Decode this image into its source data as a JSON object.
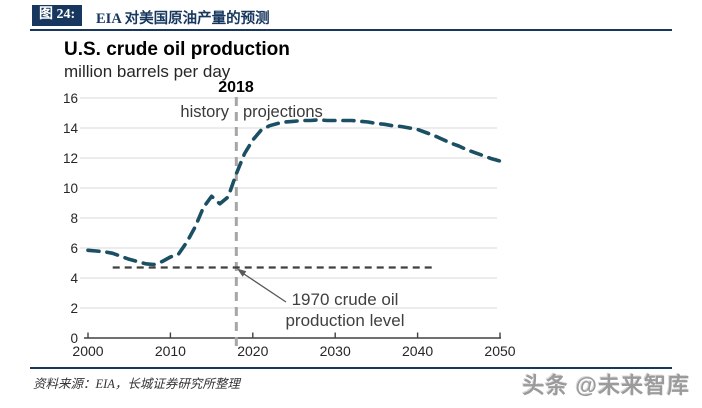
{
  "header": {
    "tag_label": "图 24:",
    "title": "EIA 对美国原油产量的预测"
  },
  "chart": {
    "title": "U.S. crude oil production",
    "subtitle": "million barrels per day",
    "divider_label": "2018",
    "history_label": "history",
    "projections_label": "projections",
    "annotation_line1": "1970 crude oil",
    "annotation_line2": "production level"
  },
  "chart_data": {
    "type": "line",
    "title": "U.S. crude oil production",
    "ylabel": "million barrels per day",
    "xlim": [
      2000,
      2050
    ],
    "ylim": [
      0,
      16
    ],
    "xticks": [
      2000,
      2010,
      2020,
      2030,
      2040,
      2050
    ],
    "yticks": [
      0,
      2,
      4,
      6,
      8,
      10,
      12,
      14,
      16
    ],
    "grid": true,
    "legend_position": "none",
    "line_style": "dashed",
    "line_color": "#1b4f63",
    "grid_color": "#d9d9d9",
    "axis_color": "#404040",
    "x": [
      2000,
      2001,
      2002,
      2003,
      2004,
      2005,
      2006,
      2007,
      2008,
      2009,
      2010,
      2011,
      2012,
      2013,
      2014,
      2015,
      2016,
      2017,
      2018,
      2019,
      2020,
      2021,
      2022,
      2023,
      2024,
      2025,
      2026,
      2027,
      2028,
      2029,
      2030,
      2031,
      2032,
      2033,
      2034,
      2035,
      2036,
      2037,
      2038,
      2039,
      2040,
      2041,
      2042,
      2043,
      2044,
      2045,
      2046,
      2047,
      2048,
      2049,
      2050
    ],
    "series": [
      {
        "name": "U.S. crude oil production (EIA history + projections)",
        "values": [
          5.85,
          5.8,
          5.75,
          5.65,
          5.45,
          5.25,
          5.1,
          4.95,
          4.9,
          5.1,
          5.4,
          5.6,
          6.4,
          7.4,
          8.7,
          9.45,
          8.95,
          9.4,
          10.95,
          12.3,
          13.2,
          13.85,
          14.15,
          14.3,
          14.4,
          14.45,
          14.5,
          14.5,
          14.55,
          14.5,
          14.5,
          14.5,
          14.5,
          14.45,
          14.4,
          14.3,
          14.25,
          14.15,
          14.1,
          14.0,
          13.9,
          13.7,
          13.5,
          13.25,
          13.0,
          12.8,
          12.55,
          12.35,
          12.15,
          11.95,
          11.8
        ]
      }
    ],
    "vline": {
      "year": 2018,
      "label": "2018",
      "left_label": "history",
      "right_label": "projections",
      "color": "#a6a6a6"
    },
    "hline": {
      "value": 4.7,
      "x_start": 2003,
      "x_end": 2042,
      "label": "1970 crude oil production level",
      "color": "#404040"
    }
  },
  "footer": {
    "source": "资料来源：EIA，长城证券研究所整理",
    "watermark": "头条 @未来智库"
  },
  "colors": {
    "navy": "#17375e",
    "curve": "#1b4f63",
    "grid": "#d9d9d9",
    "axis": "#404040",
    "vline_gray": "#a6a6a6",
    "hline_dark": "#404040"
  }
}
